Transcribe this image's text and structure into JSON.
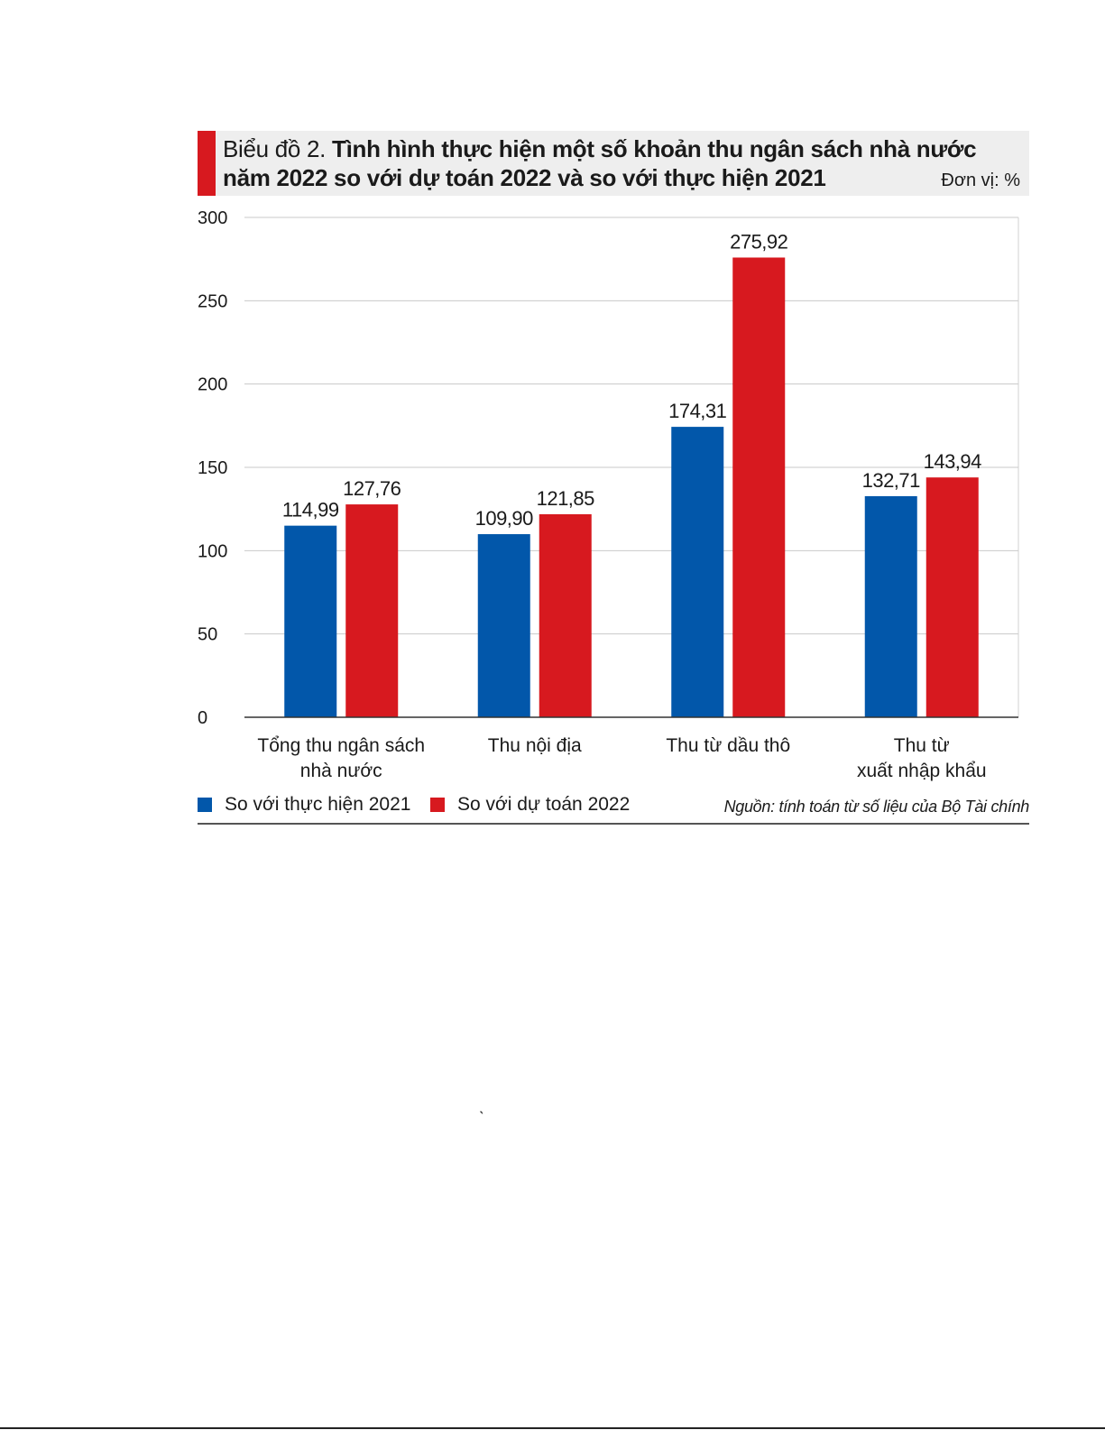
{
  "figure": {
    "title_prefix": "Biểu đồ 2.",
    "title_main": "Tình hình thực hiện một số khoản thu ngân sách nhà nước năm 2022 so với dự toán 2022 và so với thực hiện 2021",
    "unit": "Đơn vị: %",
    "source": "Nguồn: tính toán từ số liệu của Bộ Tài chính",
    "accent_color": "#d7191f"
  },
  "stray_glyph": "̀",
  "chart_data": {
    "type": "bar",
    "categories": [
      [
        "Tổng thu ngân sách",
        "nhà nước"
      ],
      [
        "Thu nội địa"
      ],
      [
        "Thu từ dầu thô"
      ],
      [
        "Thu từ",
        "xuất nhập khẩu"
      ]
    ],
    "series": [
      {
        "name": "So với thực hiện 2021",
        "color": "#0257aa",
        "values": [
          114.99,
          109.9,
          174.31,
          132.71
        ],
        "labels": [
          "114,99",
          "109,90",
          "174,31",
          "132,71"
        ]
      },
      {
        "name": "So với dự toán 2022",
        "color": "#d7191f",
        "values": [
          127.76,
          121.85,
          275.92,
          143.94
        ],
        "labels": [
          "127,76",
          "121,85",
          "275,92",
          "143,94"
        ]
      }
    ],
    "yticks": [
      0,
      50,
      100,
      150,
      200,
      250,
      300
    ],
    "ylim": [
      0,
      300
    ],
    "grid": true,
    "legend_position": "bottom-left"
  }
}
